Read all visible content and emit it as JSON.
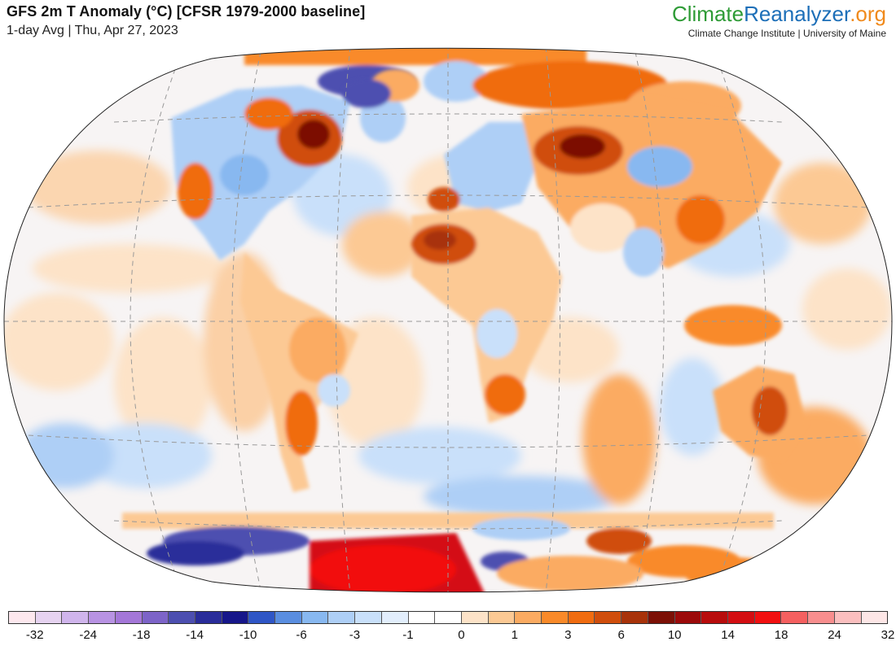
{
  "header": {
    "title": "GFS 2m T Anomaly (°C) [CFSR 1979-2000 baseline]",
    "subtitle": "1-day Avg | Thu, Apr 27, 2023"
  },
  "brand": {
    "name_part1": "Climate",
    "name_part2": "Reanalyzer",
    "name_part3": ".org",
    "tagline": "Climate Change Institute | University of Maine",
    "colors": {
      "climate": "#2e9b36",
      "reanalyzer": "#1d6fb8",
      "org": "#f08a1c"
    }
  },
  "map": {
    "projection": "Winkel Tripel",
    "graticule": "dashed",
    "ocean_base_color": "#ffffff"
  },
  "legend": {
    "swatches": [
      "#fde8ee",
      "#e6d3f0",
      "#d0b5ec",
      "#b893e3",
      "#a477d8",
      "#7d64c8",
      "#4d4fb0",
      "#2a2d9a",
      "#16168a",
      "#2f56c6",
      "#5a8ee0",
      "#88b8f0",
      "#aecff6",
      "#c9e0fa",
      "#e2eefc",
      "#ffffff",
      "#ffffff",
      "#fde3c8",
      "#fcc994",
      "#fbab62",
      "#f98a2a",
      "#f06c10",
      "#d04e0c",
      "#a8330a",
      "#7c1006",
      "#9c0a0a",
      "#b80c0c",
      "#d40e12",
      "#f21010",
      "#f56060",
      "#f88e8e",
      "#fbbfbf",
      "#fde6e6"
    ],
    "tick_labels": [
      "-32",
      "-24",
      "-18",
      "-14",
      "-10",
      "-6",
      "-3",
      "-1",
      "0",
      "1",
      "3",
      "6",
      "10",
      "14",
      "18",
      "24",
      "32"
    ]
  }
}
